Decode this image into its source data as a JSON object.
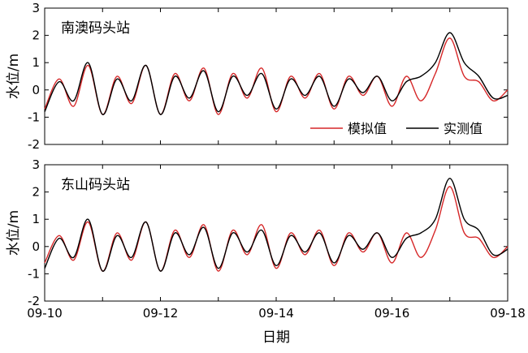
{
  "chart_data": [
    {
      "type": "line",
      "title": "南澳码头站",
      "ylabel": "水位/m",
      "xlabel": "",
      "x_unit": "day",
      "xlim": [
        "09-10",
        "09-18"
      ],
      "ylim": [
        -2,
        3
      ],
      "yticks": [
        "-2",
        "-1",
        "0",
        "1",
        "2",
        "3"
      ],
      "grid": false,
      "legend_position": "bottom-right",
      "series": [
        {
          "name": "模拟值",
          "color": "#d62728",
          "x": [
            "09-10 00:00",
            "09-10 06:00",
            "09-10 12:00",
            "09-10 18:00",
            "09-11 00:00",
            "09-11 06:00",
            "09-11 12:00",
            "09-11 18:00",
            "09-12 00:00",
            "09-12 06:00",
            "09-12 12:00",
            "09-12 18:00",
            "09-13 00:00",
            "09-13 06:00",
            "09-13 12:00",
            "09-13 18:00",
            "09-14 00:00",
            "09-14 06:00",
            "09-14 12:00",
            "09-14 18:00",
            "09-15 00:00",
            "09-15 06:00",
            "09-15 12:00",
            "09-15 18:00",
            "09-16 00:00",
            "09-16 06:00",
            "09-16 12:00",
            "09-16 18:00",
            "09-17 00:00",
            "09-17 06:00",
            "09-17 12:00",
            "09-17 18:00",
            "09-18 00:00"
          ],
          "values": [
            -0.7,
            0.4,
            -0.6,
            0.9,
            -0.9,
            0.5,
            -0.5,
            0.9,
            -0.9,
            0.6,
            -0.4,
            0.8,
            -0.9,
            0.6,
            -0.3,
            0.8,
            -0.8,
            0.5,
            -0.3,
            0.6,
            -0.7,
            0.5,
            -0.2,
            0.5,
            -0.6,
            0.5,
            -0.4,
            0.6,
            1.9,
            0.5,
            0.3,
            -0.4,
            0.0
          ]
        },
        {
          "name": "实测值",
          "color": "#000000",
          "x": [
            "09-10 00:00",
            "09-10 06:00",
            "09-10 12:00",
            "09-10 18:00",
            "09-11 00:00",
            "09-11 06:00",
            "09-11 12:00",
            "09-11 18:00",
            "09-12 00:00",
            "09-12 06:00",
            "09-12 12:00",
            "09-12 18:00",
            "09-13 00:00",
            "09-13 06:00",
            "09-13 12:00",
            "09-13 18:00",
            "09-14 00:00",
            "09-14 06:00",
            "09-14 12:00",
            "09-14 18:00",
            "09-15 00:00",
            "09-15 06:00",
            "09-15 12:00",
            "09-15 18:00",
            "09-16 00:00",
            "09-16 06:00",
            "09-16 12:00",
            "09-16 18:00",
            "09-17 00:00",
            "09-17 06:00",
            "09-17 12:00",
            "09-17 18:00",
            "09-18 00:00"
          ],
          "values": [
            -0.8,
            0.3,
            -0.4,
            1.0,
            -0.9,
            0.4,
            -0.4,
            0.9,
            -0.9,
            0.5,
            -0.3,
            0.7,
            -0.8,
            0.5,
            -0.2,
            0.6,
            -0.7,
            0.4,
            -0.2,
            0.5,
            -0.6,
            0.4,
            -0.1,
            0.5,
            -0.4,
            0.3,
            0.5,
            1.0,
            2.1,
            1.0,
            0.5,
            -0.3,
            -0.2
          ]
        }
      ]
    },
    {
      "type": "line",
      "title": "东山码头站",
      "ylabel": "水位/m",
      "xlabel": "日期",
      "x_unit": "day",
      "xlim": [
        "09-10",
        "09-18"
      ],
      "ylim": [
        -2,
        3
      ],
      "yticks": [
        "-2",
        "-1",
        "0",
        "1",
        "2",
        "3"
      ],
      "xticks": [
        "09-10",
        "09-12",
        "09-14",
        "09-16",
        "09-18"
      ],
      "grid": false,
      "series": [
        {
          "name": "模拟值",
          "color": "#d62728",
          "x": [
            "09-10 00:00",
            "09-10 06:00",
            "09-10 12:00",
            "09-10 18:00",
            "09-11 00:00",
            "09-11 06:00",
            "09-11 12:00",
            "09-11 18:00",
            "09-12 00:00",
            "09-12 06:00",
            "09-12 12:00",
            "09-12 18:00",
            "09-13 00:00",
            "09-13 06:00",
            "09-13 12:00",
            "09-13 18:00",
            "09-14 00:00",
            "09-14 06:00",
            "09-14 12:00",
            "09-14 18:00",
            "09-15 00:00",
            "09-15 06:00",
            "09-15 12:00",
            "09-15 18:00",
            "09-16 00:00",
            "09-16 06:00",
            "09-16 12:00",
            "09-16 18:00",
            "09-17 00:00",
            "09-17 06:00",
            "09-17 12:00",
            "09-17 18:00",
            "09-18 00:00"
          ],
          "values": [
            -0.6,
            0.4,
            -0.5,
            0.9,
            -0.9,
            0.5,
            -0.5,
            0.9,
            -0.9,
            0.6,
            -0.4,
            0.8,
            -0.9,
            0.6,
            -0.3,
            0.8,
            -0.8,
            0.5,
            -0.3,
            0.6,
            -0.7,
            0.5,
            -0.2,
            0.5,
            -0.6,
            0.5,
            -0.4,
            0.6,
            2.2,
            0.5,
            0.3,
            -0.4,
            0.0
          ]
        },
        {
          "name": "实测值",
          "color": "#000000",
          "x": [
            "09-10 00:00",
            "09-10 06:00",
            "09-10 12:00",
            "09-10 18:00",
            "09-11 00:00",
            "09-11 06:00",
            "09-11 12:00",
            "09-11 18:00",
            "09-12 00:00",
            "09-12 06:00",
            "09-12 12:00",
            "09-12 18:00",
            "09-13 00:00",
            "09-13 06:00",
            "09-13 12:00",
            "09-13 18:00",
            "09-14 00:00",
            "09-14 06:00",
            "09-14 12:00",
            "09-14 18:00",
            "09-15 00:00",
            "09-15 06:00",
            "09-15 12:00",
            "09-15 18:00",
            "09-16 00:00",
            "09-16 06:00",
            "09-16 12:00",
            "09-16 18:00",
            "09-17 00:00",
            "09-17 06:00",
            "09-17 12:00",
            "09-17 18:00",
            "09-18 00:00"
          ],
          "values": [
            -0.8,
            0.3,
            -0.4,
            1.0,
            -0.9,
            0.4,
            -0.4,
            0.9,
            -0.9,
            0.5,
            -0.3,
            0.7,
            -0.8,
            0.5,
            -0.2,
            0.6,
            -0.7,
            0.4,
            -0.2,
            0.5,
            -0.6,
            0.4,
            -0.1,
            0.5,
            -0.4,
            0.3,
            0.5,
            1.0,
            2.5,
            1.0,
            0.6,
            -0.3,
            -0.1
          ]
        }
      ]
    }
  ]
}
